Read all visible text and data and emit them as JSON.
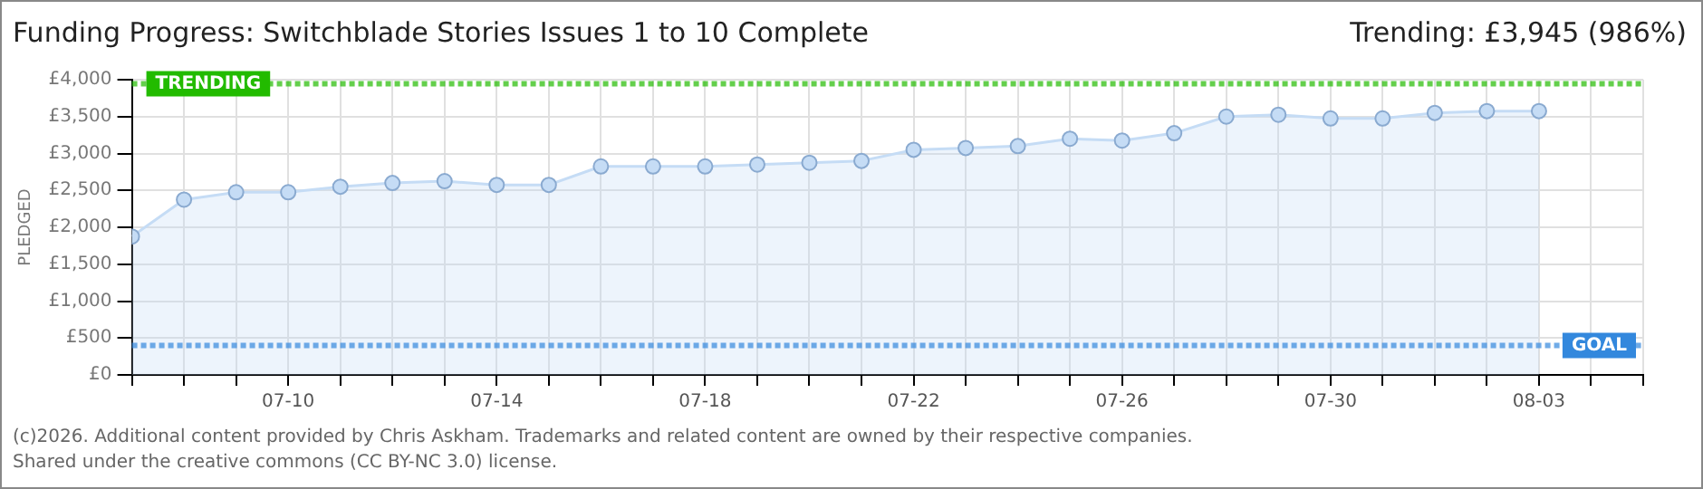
{
  "chart_data": {
    "type": "area",
    "title": "Funding Progress: Switchblade Stories Issues 1 to 10 Complete",
    "subtitle": "Trending: £3,945 (986%)",
    "ylabel": "PLEDGED",
    "annotations": [
      "(c)2026. Additional content provided by Chris Askham. Trademarks and related content are owned by their respective companies.",
      "Shared under the creative commons (CC BY-NC 3.0) license."
    ],
    "x": [
      "--07-07",
      "--07-08",
      "--07-09",
      "--07-10",
      "--07-11",
      "--07-12",
      "--07-13",
      "--07-14",
      "--07-15",
      "--07-16",
      "--07-17",
      "--07-18",
      "--07-19",
      "--07-20",
      "--07-21",
      "--07-22",
      "--07-23",
      "--07-24",
      "--07-25",
      "--07-26",
      "--07-27",
      "--07-28",
      "--07-29",
      "--07-30",
      "--07-31",
      "--08-01",
      "--08-02",
      "--08-03"
    ],
    "series": [
      {
        "color": "#c5dcf5",
        "values": [
          1875,
          2375,
          2475,
          2475,
          2550,
          2600,
          2625,
          2575,
          2575,
          2825,
          2825,
          2825,
          2850,
          2875,
          2900,
          3050,
          3075,
          3100,
          3200,
          3175,
          3275,
          3500,
          3525,
          3475,
          3475,
          3550,
          3575,
          3575
        ]
      }
    ],
    "xlim": [
      "--07-07",
      "--08-05"
    ],
    "xticks": [
      {
        "value": "--07-07",
        "label": null
      },
      {
        "value": "--07-08",
        "label": null
      },
      {
        "value": "--07-09",
        "label": null
      },
      {
        "value": "--07-10",
        "label": "07-10"
      },
      {
        "value": "--07-11",
        "label": null
      },
      {
        "value": "--07-12",
        "label": null
      },
      {
        "value": "--07-13",
        "label": null
      },
      {
        "value": "--07-14",
        "label": "07-14"
      },
      {
        "value": "--07-15",
        "label": null
      },
      {
        "value": "--07-16",
        "label": null
      },
      {
        "value": "--07-17",
        "label": null
      },
      {
        "value": "--07-18",
        "label": "07-18"
      },
      {
        "value": "--07-19",
        "label": null
      },
      {
        "value": "--07-20",
        "label": null
      },
      {
        "value": "--07-21",
        "label": null
      },
      {
        "value": "--07-22",
        "label": "07-22"
      },
      {
        "value": "--07-23",
        "label": null
      },
      {
        "value": "--07-24",
        "label": null
      },
      {
        "value": "--07-25",
        "label": null
      },
      {
        "value": "--07-26",
        "label": "07-26"
      },
      {
        "value": "--07-27",
        "label": null
      },
      {
        "value": "--07-28",
        "label": null
      },
      {
        "value": "--07-29",
        "label": null
      },
      {
        "value": "--07-30",
        "label": "07-30"
      },
      {
        "value": "--07-31",
        "label": null
      },
      {
        "value": "--08-01",
        "label": null
      },
      {
        "value": "--08-02",
        "label": null
      },
      {
        "value": "--08-03",
        "label": "08-03"
      },
      {
        "value": "--08-04",
        "label": null
      },
      {
        "value": "--08-05",
        "label": null
      }
    ],
    "ylim": [
      0,
      4000
    ],
    "yticks": [
      {
        "value": 0,
        "label": "£0"
      },
      {
        "value": 500,
        "label": "£500"
      },
      {
        "value": 1000,
        "label": "£1,000"
      },
      {
        "value": 1500,
        "label": "£1,500"
      },
      {
        "value": 2000,
        "label": "£2,000"
      },
      {
        "value": 2500,
        "label": "£2,500"
      },
      {
        "value": 3000,
        "label": "£3,000"
      },
      {
        "value": 3500,
        "label": "£3,500"
      },
      {
        "value": 4000,
        "label": "£4,000"
      }
    ],
    "ref_lines": [
      {
        "axis": "y",
        "value": 3945,
        "label": "TRENDING",
        "color": "#22bb00",
        "line_style": "dotted"
      },
      {
        "axis": "y",
        "value": 400,
        "label": "GOAL",
        "color": "#3388dd",
        "line_style": "dotted"
      }
    ],
    "grid": true,
    "legend": false,
    "marker": "circle",
    "line_style": "solid"
  }
}
